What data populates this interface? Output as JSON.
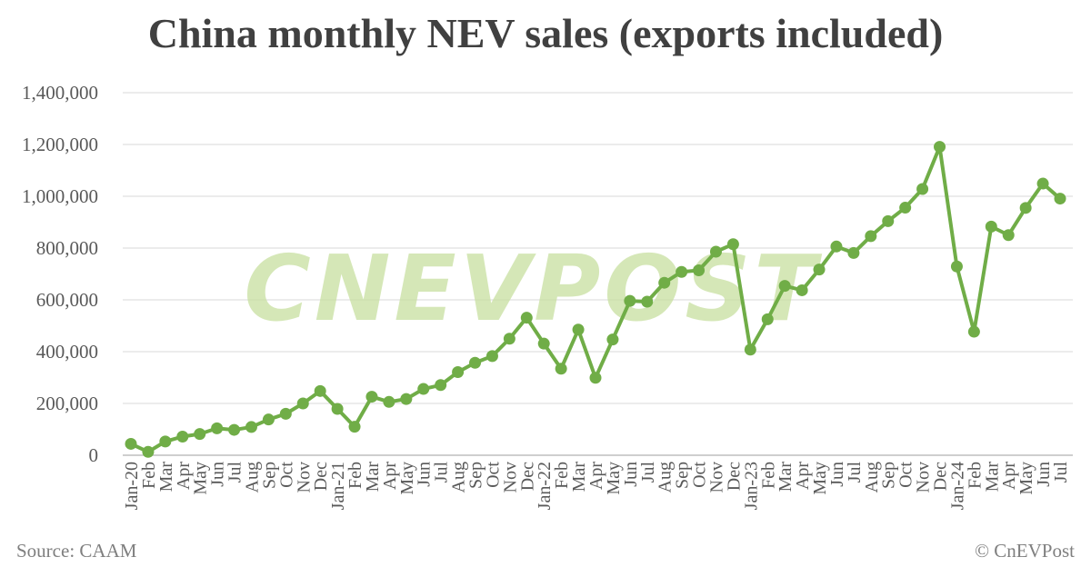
{
  "chart_data": {
    "type": "line",
    "title": "China monthly NEV sales (exports included)",
    "xlabel": "",
    "ylabel": "",
    "ylim": [
      0,
      1400000
    ],
    "yticks": [
      0,
      200000,
      400000,
      600000,
      800000,
      1000000,
      1200000,
      1400000
    ],
    "ytick_labels": [
      "0",
      "200,000",
      "400,000",
      "600,000",
      "800,000",
      "1,000,000",
      "1,200,000",
      "1,400,000"
    ],
    "grid": true,
    "legend": "none",
    "categories": [
      "Jan-20",
      "Feb",
      "Mar",
      "Apr",
      "May",
      "Jun",
      "Jul",
      "Aug",
      "Sep",
      "Oct",
      "Nov",
      "Dec",
      "Jan-21",
      "Feb",
      "Mar",
      "Apr",
      "May",
      "Jun",
      "Jul",
      "Aug",
      "Sep",
      "Oct",
      "Nov",
      "Dec",
      "Jan-22",
      "Feb",
      "Mar",
      "Apr",
      "May",
      "Jun",
      "Jul",
      "Aug",
      "Sep",
      "Oct",
      "Nov",
      "Dec",
      "Jan-23",
      "Feb",
      "Mar",
      "Apr",
      "May",
      "Jun",
      "Jul",
      "Aug",
      "Sep",
      "Oct",
      "Nov",
      "Dec",
      "Jan-24",
      "Feb",
      "Mar",
      "Apr",
      "May",
      "Jun",
      "Jul"
    ],
    "series": [
      {
        "name": "NEV sales",
        "color": "#70ad47",
        "values": [
          44000,
          13000,
          53000,
          72000,
          82000,
          104000,
          98000,
          109000,
          138000,
          160000,
          200000,
          248000,
          179000,
          110000,
          226000,
          206000,
          217000,
          256000,
          271000,
          321000,
          357000,
          383000,
          450000,
          531000,
          431000,
          334000,
          485000,
          299000,
          447000,
          596000,
          593000,
          666000,
          708000,
          714000,
          786000,
          815000,
          408000,
          525000,
          654000,
          637000,
          717000,
          806000,
          781000,
          846000,
          904000,
          956000,
          1028000,
          1191000,
          729000,
          477000,
          883000,
          850000,
          955000,
          1049000,
          991000
        ]
      }
    ]
  },
  "watermark": "CNEVPOST",
  "footer": {
    "source": "Source: CAAM",
    "copyright": "© CnEVPost"
  }
}
